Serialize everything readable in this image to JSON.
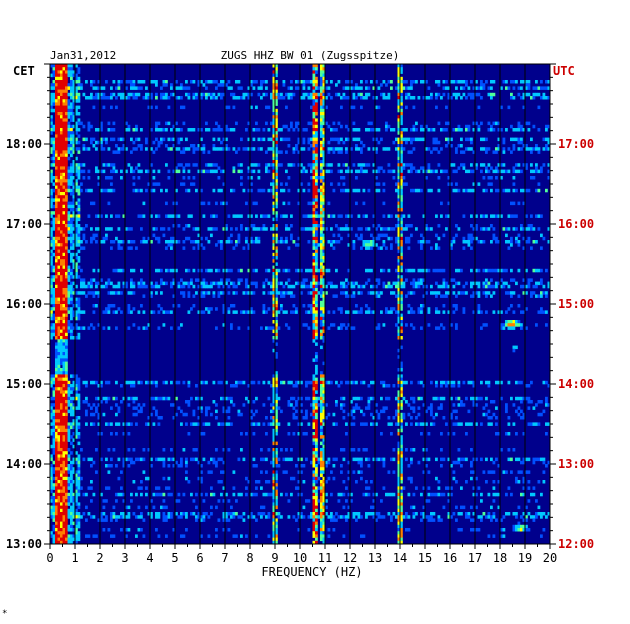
{
  "chart_data": {
    "type": "heatmap",
    "title_date": "Jan31,2012",
    "title_station": "ZUGS HHZ BW 01 (Zugsspitze)",
    "left_timezone": "CET",
    "right_timezone": "UTC",
    "xlabel": "FREQUENCY (HZ)",
    "xlim": [
      0,
      20
    ],
    "x_ticks": [
      "0",
      "1",
      "2",
      "3",
      "4",
      "5",
      "6",
      "7",
      "8",
      "9",
      "10",
      "11",
      "12",
      "13",
      "14",
      "15",
      "16",
      "17",
      "18",
      "19",
      "20"
    ],
    "cet_ticks": [
      "13:00",
      "14:00",
      "15:00",
      "16:00",
      "17:00",
      "18:00"
    ],
    "utc_ticks": [
      "12:00",
      "13:00",
      "14:00",
      "15:00",
      "16:00",
      "17:00"
    ],
    "ylim_cet_hours": [
      13,
      19
    ],
    "grid": "vertical lines at each 1 Hz",
    "colormap": [
      "#00008c",
      "#0000e6",
      "#0050ff",
      "#00c8ff",
      "#50ff9a",
      "#ffff00",
      "#ff8000",
      "#e00000"
    ],
    "features": {
      "low_frequency_band": {
        "freq_range": [
          0.2,
          0.7
        ],
        "level": "high"
      },
      "persistent_lines": [
        {
          "freq": 9.0,
          "level": "medium"
        },
        {
          "freq": 10.6,
          "level": "high"
        },
        {
          "freq": 10.9,
          "level": "medium"
        },
        {
          "freq": 14.0,
          "level": "medium"
        }
      ],
      "quiet_interval_cet": [
        15.1,
        15.55
      ],
      "bursts": [
        {
          "freq": 18.5,
          "time_cet": 15.75,
          "level": "high"
        },
        {
          "freq": 18.6,
          "time_cet": 15.45,
          "level": "high"
        },
        {
          "freq": 12.8,
          "time_cet": 16.75,
          "level": "medium"
        },
        {
          "freq": 18.8,
          "time_cet": 13.2,
          "level": "medium"
        }
      ]
    },
    "footer_mark": "*"
  }
}
